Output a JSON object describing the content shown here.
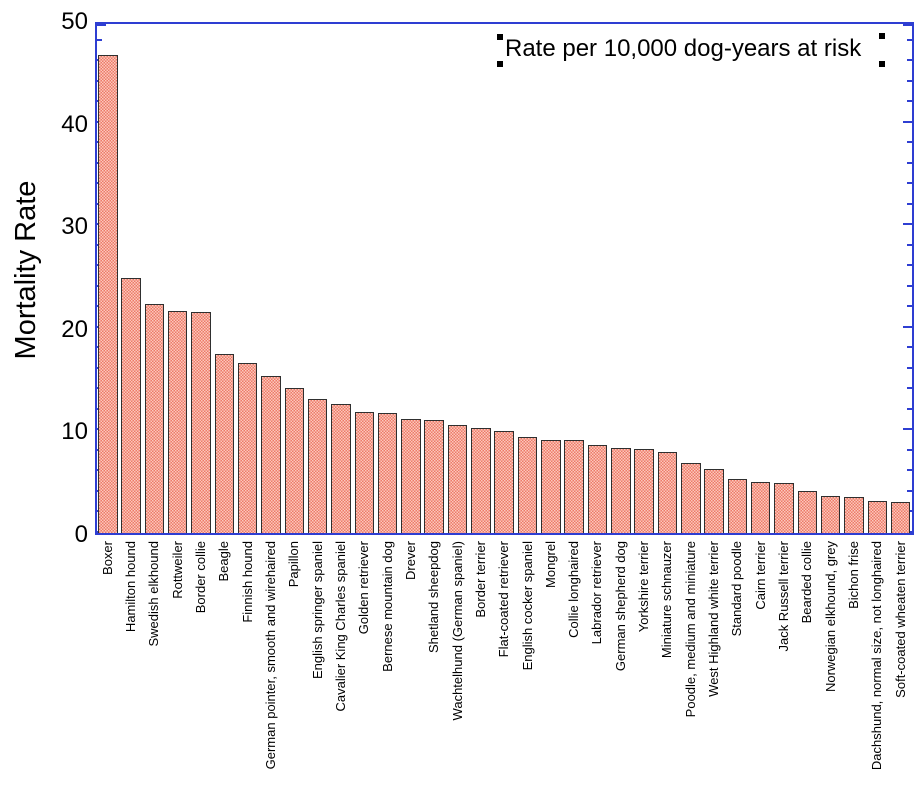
{
  "figure": {
    "y_axis_title": "Mortality Rate",
    "annotation_text": "Rate per 10,000 dog-years at risk",
    "colors": {
      "axis": "#2e3ed2",
      "bar_pattern_dark": "#ec7a68",
      "bar_pattern_light": "#fcc8bc",
      "bar_border": "#2f2f2f",
      "text": "#000000",
      "selection_handle": "#000000"
    }
  },
  "chart_data": {
    "type": "bar",
    "title": "",
    "xlabel": "",
    "ylabel": "Mortality Rate",
    "annotation": "Rate per 10,000 dog-years at risk",
    "ylim": [
      0,
      50
    ],
    "y_major_ticks": [
      0,
      10,
      20,
      30,
      40,
      50
    ],
    "y_minor_tick_step": 2,
    "grid": false,
    "legend": "none",
    "categories": [
      "Boxer",
      "Hamilton hound",
      "Swedish elkhound",
      "Rottweiler",
      "Border collie",
      "Beagle",
      "Finnish hound",
      "German pointer, smooth and wirehaired",
      "Papillon",
      "English springer spaniel",
      "Cavalier King Charles spaniel",
      "Golden retriever",
      "Bernese mountain dog",
      "Drever",
      "Shetland sheepdog",
      "Wachtelhund (German spaniel)",
      "Border terrier",
      "Flat-coated retriever",
      "English cocker spaniel",
      "Mongrel",
      "Collie longhaired",
      "Labrador retriever",
      "German shepherd dog",
      "Yorkshire terrier",
      "Miniature schnauzer",
      "Poodle, medium and miniature",
      "West Highland white terrier",
      "Standard poodle",
      "Cairn terrier",
      "Jack Russell terrier",
      "Bearded collie",
      "Norwegian elkhound, grey",
      "Bichon frise",
      "Dachshund, normal size, not longhaired",
      "Soft-coated wheaten terrier"
    ],
    "values": [
      46.6,
      24.9,
      22.3,
      21.6,
      21.5,
      17.4,
      16.6,
      15.3,
      14.1,
      13.1,
      12.6,
      11.8,
      11.7,
      11.1,
      11.0,
      10.5,
      10.2,
      9.9,
      9.4,
      9.1,
      9.1,
      8.6,
      8.3,
      8.2,
      7.9,
      6.8,
      6.2,
      5.3,
      5.0,
      4.9,
      4.1,
      3.6,
      3.5,
      3.1,
      3.0
    ]
  }
}
